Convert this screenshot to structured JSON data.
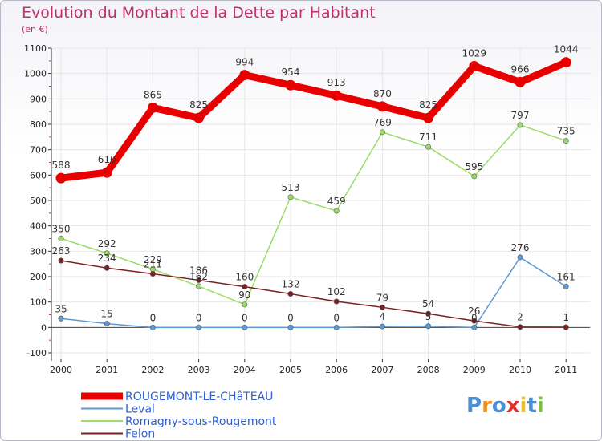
{
  "chart_data": {
    "type": "line",
    "title": "Evolution du Montant de la Dette par Habitant",
    "unit": "(en €)",
    "x": [
      "2000",
      "2001",
      "2002",
      "2003",
      "2004",
      "2005",
      "2006",
      "2007",
      "2008",
      "2009",
      "2010",
      "2011"
    ],
    "ylim": [
      -100,
      1100
    ],
    "yticks": [
      -100,
      0,
      100,
      200,
      300,
      400,
      500,
      600,
      700,
      800,
      900,
      1000,
      1100
    ],
    "series": [
      {
        "name": "ROUGEMONT-LE-CHâTEAU",
        "color": "#e80000",
        "values": [
          588,
          610,
          865,
          825,
          994,
          954,
          913,
          870,
          825,
          1029,
          966,
          1044
        ]
      },
      {
        "name": "Leval",
        "color": "#5b9ad5",
        "values": [
          35,
          15,
          0,
          0,
          0,
          0,
          0,
          4,
          5,
          0,
          276,
          161
        ]
      },
      {
        "name": "Romagny-sous-Rougemont",
        "color": "#99dd66",
        "values": [
          350,
          292,
          229,
          162,
          90,
          513,
          459,
          769,
          711,
          595,
          797,
          735
        ]
      },
      {
        "name": "Felon",
        "color": "#7a2020",
        "values": [
          263,
          234,
          211,
          186,
          160,
          132,
          102,
          79,
          54,
          26,
          2,
          1
        ]
      }
    ]
  },
  "logo": {
    "letters": [
      "P",
      "r",
      "o",
      "x",
      "i",
      "t",
      "i"
    ],
    "colors": [
      "#4a8fd8",
      "#f09020",
      "#4a8fd8",
      "#e03030",
      "#f0c020",
      "#4a8fd8",
      "#80c040"
    ]
  }
}
